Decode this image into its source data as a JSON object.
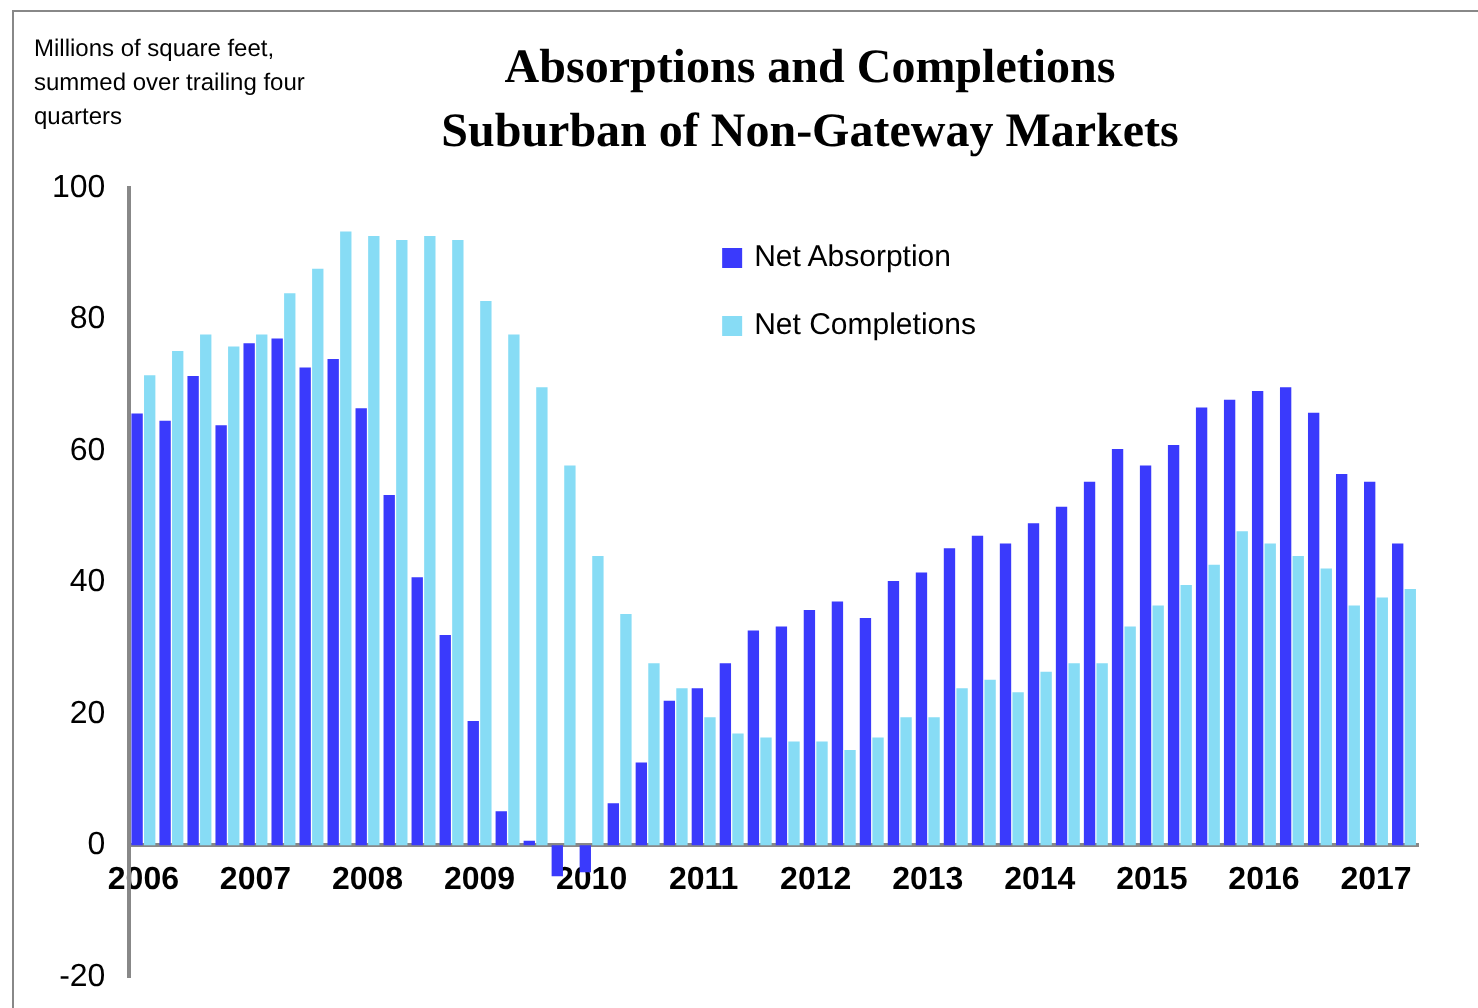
{
  "chart_data": {
    "type": "bar",
    "title": "Absorptions and Completions\nSuburban of Non-Gateway Markets",
    "ylabel": "Millions of square feet, summed over trailing four quarters",
    "categories": [
      "2006",
      null,
      null,
      null,
      "2007",
      null,
      null,
      null,
      "2008",
      null,
      null,
      null,
      "2009",
      null,
      null,
      null,
      "2010",
      null,
      null,
      null,
      "2011",
      null,
      null,
      null,
      "2012",
      null,
      null,
      null,
      "2013",
      null,
      null,
      null,
      "2014",
      null,
      null,
      null,
      "2015",
      null,
      null,
      null,
      "2016",
      null,
      null,
      null,
      "2017",
      null
    ],
    "series": [
      {
        "name": "Net Absorption",
        "color": "#3a3afc",
        "values": [
          65.7,
          64.6,
          71.4,
          63.9,
          76.4,
          77.1,
          72.7,
          74.0,
          66.5,
          53.3,
          40.8,
          32.0,
          18.9,
          5.2,
          0.7,
          -4.7,
          -4.1,
          6.4,
          12.6,
          22.0,
          23.9,
          27.7,
          32.7,
          33.3,
          35.8,
          37.1,
          34.6,
          40.2,
          41.5,
          45.2,
          47.1,
          45.9,
          49.0,
          51.5,
          55.3,
          60.3,
          57.8,
          60.9,
          66.6,
          67.8,
          69.1,
          69.7,
          65.8,
          56.5,
          55.3,
          45.9
        ]
      },
      {
        "name": "Net Completions",
        "color": "#87dcf5",
        "values": [
          71.5,
          75.2,
          77.7,
          75.9,
          77.7,
          84.0,
          87.7,
          93.4,
          92.7,
          92.1,
          92.7,
          92.1,
          82.8,
          77.7,
          69.7,
          57.8,
          44.0,
          35.2,
          27.7,
          23.9,
          19.5,
          17.0,
          16.4,
          15.8,
          15.8,
          14.5,
          16.4,
          19.5,
          19.5,
          23.9,
          25.2,
          23.3,
          26.4,
          27.7,
          27.7,
          33.3,
          36.5,
          39.6,
          42.7,
          47.8,
          45.9,
          44.0,
          42.1,
          36.5,
          37.7,
          39.0
        ]
      }
    ],
    "ylim": [
      -20,
      100
    ],
    "yticks": [
      -20,
      0,
      20,
      40,
      60,
      80,
      100
    ],
    "grid": false,
    "legend": "top"
  }
}
